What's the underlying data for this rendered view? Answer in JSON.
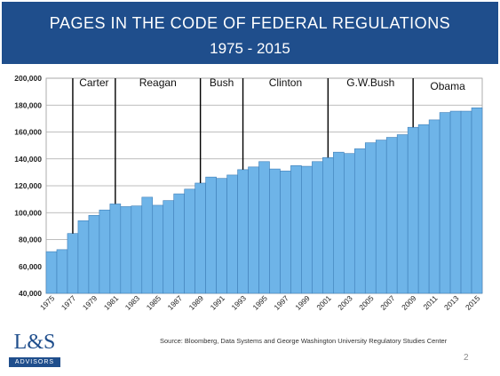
{
  "header": {
    "title_line1": "PAGES IN THE CODE OF FEDERAL REGULATIONS",
    "title_line2": "1975 - 2015"
  },
  "footer": {
    "source": "Source:  Bloomberg, Data Systems and George Washington University Regulatory Studies Center",
    "page_number": "2"
  },
  "logo": {
    "mark": "L&S",
    "sub": "ADVISORS"
  },
  "colors": {
    "banner": "#1f4e8c",
    "bar": "#6eb4e8",
    "bar_edge": "#3f7fb8",
    "marker": "#000000"
  },
  "chart_data": {
    "type": "bar",
    "title": "PAGES IN THE CODE OF FEDERAL REGULATIONS",
    "subtitle": "1975 - 2015",
    "xlabel": "",
    "ylabel": "",
    "ylim": [
      40000,
      200000
    ],
    "yticks": [
      40000,
      60000,
      80000,
      100000,
      120000,
      140000,
      160000,
      180000,
      200000
    ],
    "ytick_labels": [
      "40,000",
      "60,000",
      "80,000",
      "100,000",
      "120,000",
      "140,000",
      "160,000",
      "180,000",
      "200,000"
    ],
    "grid": true,
    "categories": [
      "1975",
      "1976",
      "1977",
      "1978",
      "1979",
      "1980",
      "1981",
      "1982",
      "1983",
      "1984",
      "1985",
      "1986",
      "1987",
      "1988",
      "1989",
      "1990",
      "1991",
      "1992",
      "1993",
      "1994",
      "1995",
      "1996",
      "1997",
      "1998",
      "1999",
      "2000",
      "2001",
      "2002",
      "2003",
      "2004",
      "2005",
      "2006",
      "2007",
      "2008",
      "2009",
      "2010",
      "2011",
      "2012",
      "2013",
      "2014",
      "2015"
    ],
    "x_tick_labels": [
      "1975",
      "1977",
      "1979",
      "1981",
      "1983",
      "1985",
      "1987",
      "1989",
      "1991",
      "1993",
      "1995",
      "1997",
      "1999",
      "2001",
      "2003",
      "2005",
      "2007",
      "2009",
      "2011",
      "2013",
      "2015"
    ],
    "values": [
      71000,
      72500,
      84500,
      94000,
      98000,
      102000,
      106500,
      104500,
      105000,
      111500,
      105500,
      109000,
      114000,
      117500,
      122000,
      126500,
      125500,
      128000,
      132000,
      134000,
      138000,
      132500,
      131000,
      135000,
      134500,
      138000,
      141000,
      145000,
      144000,
      147500,
      152000,
      154000,
      156000,
      158000,
      163500,
      165500,
      169000,
      174500,
      175500,
      175500,
      178000
    ],
    "presidencies": [
      {
        "label": "Carter",
        "start_year": 1977
      },
      {
        "label": "Reagan",
        "start_year": 1981
      },
      {
        "label": "Bush",
        "start_year": 1989
      },
      {
        "label": "Clinton",
        "start_year": 1993
      },
      {
        "label": "G.W.Bush",
        "start_year": 2001
      },
      {
        "label": "Obama",
        "start_year": 2009
      }
    ]
  }
}
